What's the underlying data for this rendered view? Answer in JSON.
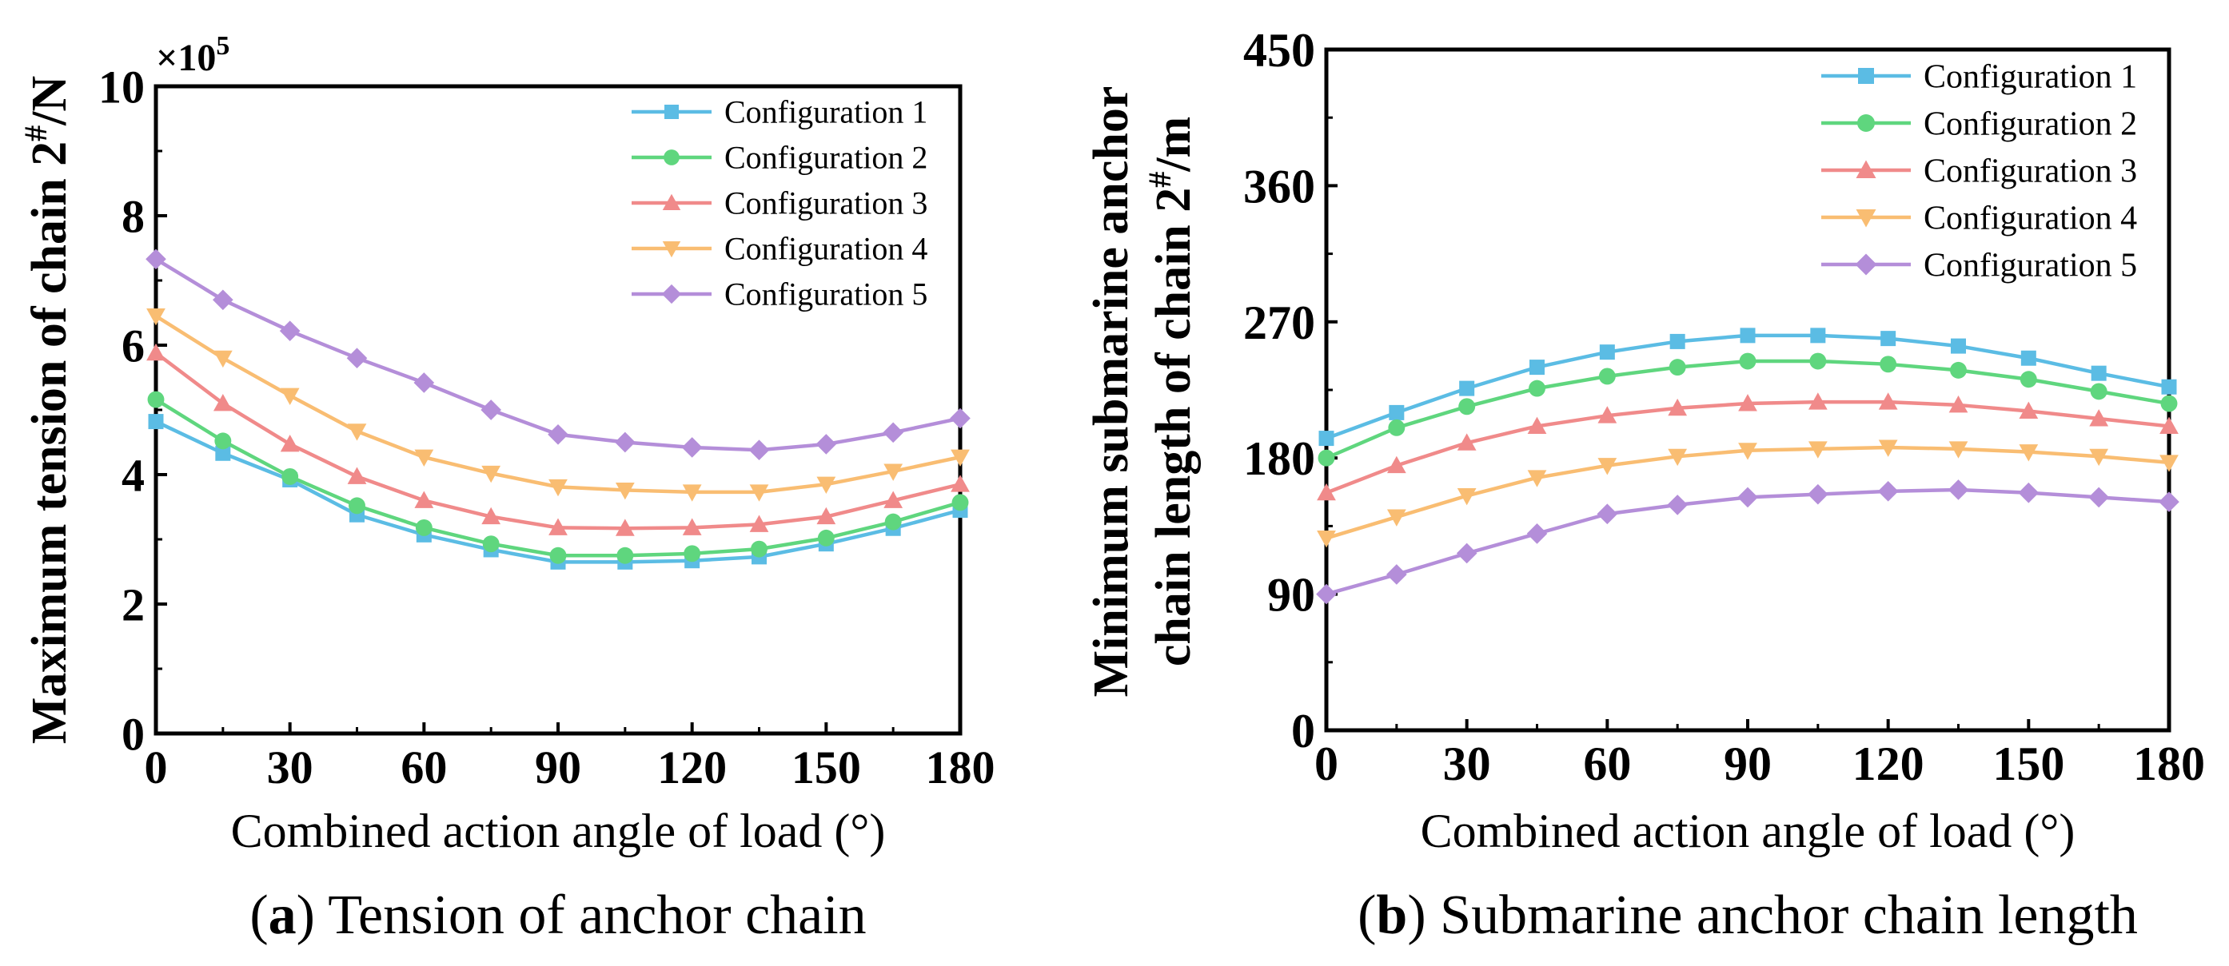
{
  "chart_data": [
    {
      "type": "line",
      "caption_letter": "a",
      "caption_text": "Tension of anchor chain",
      "ylabel_main": "Maximum tension of chain 2",
      "ylabel_sup": "#",
      "ylabel_unit": "/N",
      "multiplier_base": "×10",
      "multiplier_exp": "5",
      "xlabel": "Combined action angle of load (°)",
      "xlim": [
        0,
        180
      ],
      "ylim": [
        0,
        10
      ],
      "xticks": [
        0,
        30,
        60,
        90,
        120,
        150,
        180
      ],
      "yticks": [
        0,
        2,
        4,
        6,
        8,
        10
      ],
      "x": [
        0,
        15,
        30,
        45,
        60,
        75,
        90,
        105,
        120,
        135,
        150,
        165,
        180
      ],
      "series": [
        {
          "name": "Configuration 1",
          "color": "#5bbce4",
          "marker": "square",
          "values": [
            4.82,
            4.33,
            3.92,
            3.38,
            3.07,
            2.84,
            2.65,
            2.65,
            2.67,
            2.73,
            2.93,
            3.17,
            3.45
          ]
        },
        {
          "name": "Configuration 2",
          "color": "#5fd67e",
          "marker": "circle",
          "values": [
            5.16,
            4.52,
            3.97,
            3.52,
            3.18,
            2.93,
            2.75,
            2.75,
            2.78,
            2.85,
            3.02,
            3.27,
            3.57
          ]
        },
        {
          "name": "Configuration 3",
          "color": "#f08a8a",
          "marker": "triangle-up",
          "values": [
            5.88,
            5.1,
            4.47,
            3.97,
            3.6,
            3.35,
            3.18,
            3.17,
            3.18,
            3.23,
            3.35,
            3.6,
            3.85
          ]
        },
        {
          "name": "Configuration 4",
          "color": "#f9bd72",
          "marker": "triangle-down",
          "values": [
            6.45,
            5.8,
            5.22,
            4.67,
            4.27,
            4.02,
            3.81,
            3.76,
            3.73,
            3.73,
            3.85,
            4.05,
            4.27
          ]
        },
        {
          "name": "Configuration 5",
          "color": "#b48ed9",
          "marker": "diamond",
          "values": [
            7.33,
            6.7,
            6.22,
            5.8,
            5.42,
            5.0,
            4.62,
            4.5,
            4.42,
            4.38,
            4.47,
            4.65,
            4.87
          ]
        }
      ]
    },
    {
      "type": "line",
      "caption_letter": "b",
      "caption_text": "Submarine anchor chain length",
      "ylabel_line1": "Minimum submarine anchor",
      "ylabel_main": "chain length of chain 2",
      "ylabel_sup": "#",
      "ylabel_unit": "/m",
      "xlabel": "Combined action angle of load (°)",
      "xlim": [
        0,
        180
      ],
      "ylim": [
        0,
        450
      ],
      "xticks": [
        0,
        30,
        60,
        90,
        120,
        150,
        180
      ],
      "yticks": [
        0,
        90,
        180,
        270,
        360,
        450
      ],
      "x": [
        0,
        15,
        30,
        45,
        60,
        75,
        90,
        105,
        120,
        135,
        150,
        165,
        180
      ],
      "series": [
        {
          "name": "Configuration 1",
          "color": "#5bbce4",
          "marker": "square",
          "values": [
            193,
            210,
            226,
            240,
            250,
            257,
            261,
            261,
            259,
            254,
            246,
            236,
            227
          ]
        },
        {
          "name": "Configuration 2",
          "color": "#5fd67e",
          "marker": "circle",
          "values": [
            180,
            200,
            214,
            226,
            234,
            240,
            244,
            244,
            242,
            238,
            232,
            224,
            216
          ]
        },
        {
          "name": "Configuration 3",
          "color": "#f08a8a",
          "marker": "triangle-up",
          "values": [
            157,
            175,
            190,
            201,
            208,
            213,
            216,
            217,
            217,
            215,
            211,
            206,
            201
          ]
        },
        {
          "name": "Configuration 4",
          "color": "#f9bd72",
          "marker": "triangle-down",
          "values": [
            127,
            141,
            155,
            167,
            175,
            181,
            185,
            186,
            187,
            186,
            184,
            181,
            177
          ]
        },
        {
          "name": "Configuration 5",
          "color": "#b48ed9",
          "marker": "diamond",
          "values": [
            90,
            103,
            117,
            130,
            143,
            149,
            154,
            156,
            158,
            159,
            157,
            154,
            151
          ]
        }
      ]
    }
  ]
}
